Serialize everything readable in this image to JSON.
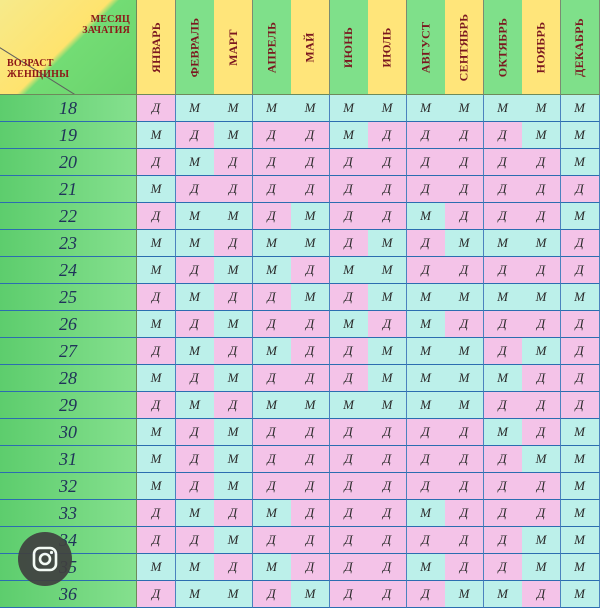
{
  "corner": {
    "top_line1": "МЕСЯЦ",
    "top_line2": "ЗАЧАТИЯ",
    "bottom_line1": "ВОЗРАСТ",
    "bottom_line2": "ЖЕНЩИНЫ"
  },
  "months": [
    "ЯНВАРЬ",
    "ФЕВРАЛЬ",
    "МАРТ",
    "АПРЕЛЬ",
    "МАЙ",
    "ИЮНЬ",
    "ИЮЛЬ",
    "АВГУСТ",
    "СЕНТЯБРЬ",
    "ОКТЯБРЬ",
    "НОЯБРЬ",
    "ДЕКАБРЬ"
  ],
  "rows": [
    {
      "age": "18",
      "cells": [
        "Д",
        "М",
        "М",
        "М",
        "М",
        "М",
        "М",
        "М",
        "М",
        "М",
        "М",
        "М"
      ]
    },
    {
      "age": "19",
      "cells": [
        "М",
        "Д",
        "М",
        "Д",
        "Д",
        "М",
        "Д",
        "Д",
        "Д",
        "Д",
        "М",
        "М"
      ]
    },
    {
      "age": "20",
      "cells": [
        "Д",
        "М",
        "Д",
        "Д",
        "Д",
        "Д",
        "Д",
        "Д",
        "Д",
        "Д",
        "Д",
        "М"
      ]
    },
    {
      "age": "21",
      "cells": [
        "М",
        "Д",
        "Д",
        "Д",
        "Д",
        "Д",
        "Д",
        "Д",
        "Д",
        "Д",
        "Д",
        "Д"
      ]
    },
    {
      "age": "22",
      "cells": [
        "Д",
        "М",
        "М",
        "Д",
        "М",
        "Д",
        "Д",
        "М",
        "Д",
        "Д",
        "Д",
        "М"
      ]
    },
    {
      "age": "23",
      "cells": [
        "М",
        "М",
        "Д",
        "М",
        "М",
        "Д",
        "М",
        "Д",
        "М",
        "М",
        "М",
        "Д"
      ]
    },
    {
      "age": "24",
      "cells": [
        "М",
        "Д",
        "М",
        "М",
        "Д",
        "М",
        "М",
        "Д",
        "Д",
        "Д",
        "Д",
        "Д"
      ]
    },
    {
      "age": "25",
      "cells": [
        "Д",
        "М",
        "Д",
        "Д",
        "М",
        "Д",
        "М",
        "М",
        "М",
        "М",
        "М",
        "М"
      ]
    },
    {
      "age": "26",
      "cells": [
        "М",
        "Д",
        "М",
        "Д",
        "Д",
        "М",
        "Д",
        "М",
        "Д",
        "Д",
        "Д",
        "Д"
      ]
    },
    {
      "age": "27",
      "cells": [
        "Д",
        "М",
        "Д",
        "М",
        "Д",
        "Д",
        "М",
        "М",
        "М",
        "Д",
        "М",
        "Д"
      ]
    },
    {
      "age": "28",
      "cells": [
        "М",
        "Д",
        "М",
        "Д",
        "Д",
        "Д",
        "М",
        "М",
        "М",
        "М",
        "Д",
        "Д"
      ]
    },
    {
      "age": "29",
      "cells": [
        "Д",
        "М",
        "Д",
        "М",
        "М",
        "М",
        "М",
        "М",
        "М",
        "Д",
        "Д",
        "Д"
      ]
    },
    {
      "age": "30",
      "cells": [
        "М",
        "Д",
        "М",
        "Д",
        "Д",
        "Д",
        "Д",
        "Д",
        "Д",
        "М",
        "Д",
        "М"
      ]
    },
    {
      "age": "31",
      "cells": [
        "М",
        "Д",
        "М",
        "Д",
        "Д",
        "Д",
        "Д",
        "Д",
        "Д",
        "Д",
        "М",
        "М"
      ]
    },
    {
      "age": "32",
      "cells": [
        "М",
        "Д",
        "М",
        "Д",
        "Д",
        "Д",
        "Д",
        "Д",
        "Д",
        "Д",
        "Д",
        "М"
      ]
    },
    {
      "age": "33",
      "cells": [
        "Д",
        "М",
        "Д",
        "М",
        "Д",
        "Д",
        "Д",
        "М",
        "Д",
        "Д",
        "Д",
        "М"
      ]
    },
    {
      "age": "34",
      "cells": [
        "Д",
        "Д",
        "М",
        "Д",
        "Д",
        "Д",
        "Д",
        "Д",
        "Д",
        "Д",
        "М",
        "М"
      ]
    },
    {
      "age": "35",
      "cells": [
        "М",
        "М",
        "Д",
        "М",
        "Д",
        "Д",
        "Д",
        "М",
        "Д",
        "Д",
        "М",
        "М"
      ]
    },
    {
      "age": "36",
      "cells": [
        "Д",
        "М",
        "М",
        "Д",
        "М",
        "Д",
        "Д",
        "Д",
        "М",
        "М",
        "Д",
        "М"
      ]
    }
  ],
  "overlay": {
    "icon": "lens-search-icon"
  },
  "colors": {
    "boy_cell": "#bcf0ea",
    "girl_cell": "#f4c3e8",
    "age_column": "#6ad36d",
    "month_header": "#ffe36e",
    "header_text": "#7b1820"
  }
}
